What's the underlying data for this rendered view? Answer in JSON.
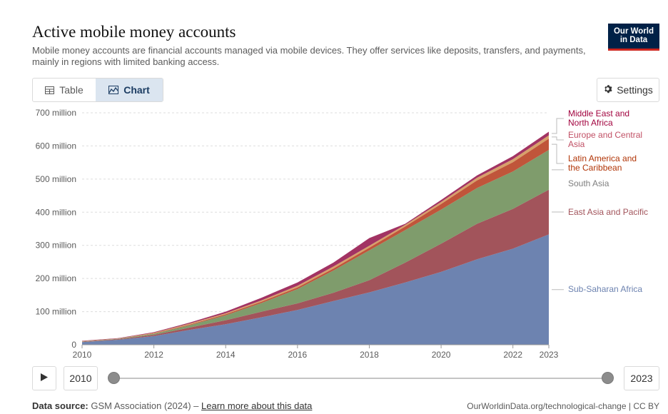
{
  "header": {
    "title": "Active mobile money accounts",
    "subtitle": "Mobile money accounts are financial accounts managed via mobile devices. They offer services like deposits, transfers, and payments, mainly in regions with limited banking access.",
    "logo_line1": "Our World",
    "logo_line2": "in Data"
  },
  "tabs": {
    "table_label": "Table",
    "chart_label": "Chart",
    "active": "Chart"
  },
  "settings_label": "Settings",
  "timeline": {
    "start_label": "2010",
    "end_label": "2023",
    "play_icon": "play-icon"
  },
  "footer": {
    "source_prefix": "Data source:",
    "source_text": "GSM Association (2024) – ",
    "learn_more": "Learn more about this data",
    "credit": "OurWorldinData.org/technological-change | CC BY"
  },
  "colors": {
    "background": "#ffffff",
    "gridline": "#dddddd",
    "axis_text": "#5b5b5b",
    "tab_active_bg": "#dbe5f0"
  },
  "chart_data": {
    "type": "area",
    "stacked": true,
    "x": [
      2010,
      2011,
      2012,
      2013,
      2014,
      2015,
      2016,
      2017,
      2018,
      2019,
      2020,
      2021,
      2022,
      2023
    ],
    "x_ticks": [
      "2010",
      "2012",
      "2014",
      "2016",
      "2018",
      "2020",
      "2022",
      "2023"
    ],
    "y_ticks": [
      {
        "value": 0,
        "label": "0"
      },
      {
        "value": 100,
        "label": "100 million"
      },
      {
        "value": 200,
        "label": "200 million"
      },
      {
        "value": 300,
        "label": "300 million"
      },
      {
        "value": 400,
        "label": "400 million"
      },
      {
        "value": 500,
        "label": "500 million"
      },
      {
        "value": 600,
        "label": "600 million"
      },
      {
        "value": 700,
        "label": "700 million"
      }
    ],
    "ylim": [
      0,
      700
    ],
    "grid": true,
    "legend_position": "right",
    "series": [
      {
        "name": "Sub-Saharan Africa",
        "color": "#6d83b0",
        "label_color": "#6d83b0",
        "values": [
          8,
          15,
          26,
          45,
          62,
          83,
          105,
          132,
          158,
          188,
          220,
          258,
          290,
          333
        ]
      },
      {
        "name": "East Asia and Pacific",
        "color": "#a2545b",
        "label_color": "#a2545b",
        "values": [
          1,
          2,
          4,
          7,
          12,
          17,
          20,
          25,
          37,
          60,
          85,
          107,
          120,
          135
        ]
      },
      {
        "name": "South Asia",
        "color": "#7f9c6c",
        "label_color": "#7f7f7f",
        "values": [
          1,
          1,
          3,
          7,
          15,
          26,
          43,
          67,
          90,
          98,
          103,
          108,
          113,
          120
        ]
      },
      {
        "name": "Latin America and the Caribbean",
        "color": "#c0553a",
        "label_color": "#b13507",
        "values": [
          0,
          0,
          1,
          2,
          3,
          4,
          5,
          6,
          8,
          11,
          17,
          23,
          28,
          34
        ]
      },
      {
        "name": "Europe and Central Asia",
        "color": "#d7a06a",
        "label_color": "#c15065",
        "values": [
          1,
          1,
          2,
          3,
          3,
          4,
          5,
          6,
          6,
          5,
          6,
          8,
          9,
          10
        ]
      },
      {
        "name": "Middle East and North Africa",
        "color": "#a23363",
        "label_color": "#a2043f",
        "values": [
          1,
          1,
          2,
          3,
          5,
          8,
          10,
          12,
          23,
          3,
          6,
          7,
          9,
          11
        ]
      }
    ],
    "legend_labels": [
      {
        "series": "Middle East and North Africa",
        "lines": [
          "Middle East and",
          "North Africa"
        ]
      },
      {
        "series": "Europe and Central Asia",
        "lines": [
          "Europe and Central",
          "Asia"
        ]
      },
      {
        "series": "Latin America and the Caribbean",
        "lines": [
          "Latin America and",
          "the Caribbean"
        ]
      },
      {
        "series": "South Asia",
        "lines": [
          "South Asia"
        ]
      },
      {
        "series": "East Asia and Pacific",
        "lines": [
          "East Asia and Pacific"
        ]
      },
      {
        "series": "Sub-Saharan Africa",
        "lines": [
          "Sub-Saharan Africa"
        ]
      }
    ]
  }
}
